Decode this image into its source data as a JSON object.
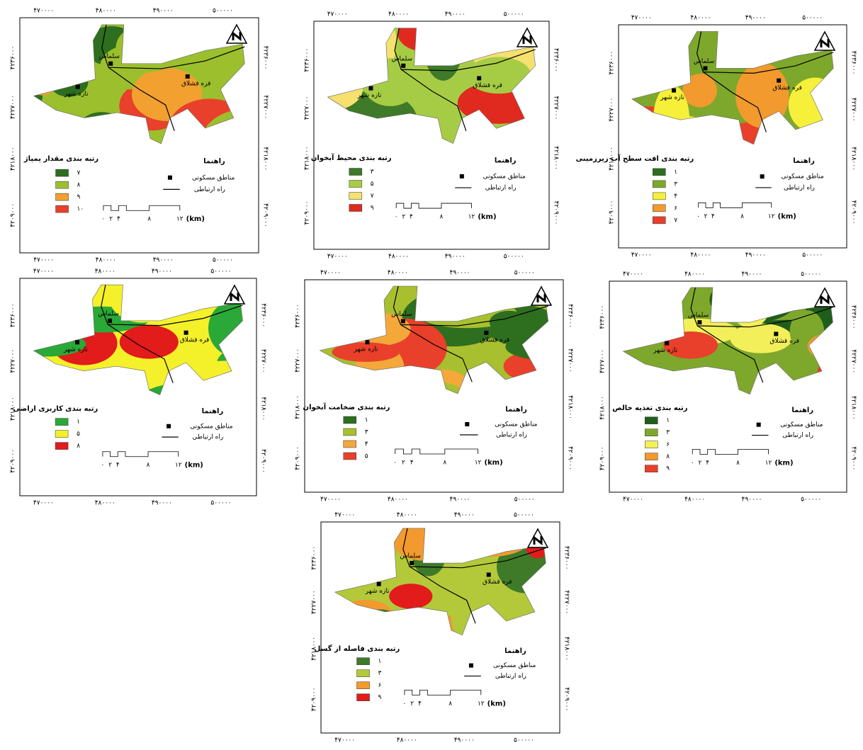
{
  "axes": {
    "x_ticks": [
      "۴۷۰۰۰۰",
      "۴۸۰۰۰۰",
      "۴۹۰۰۰۰",
      "۵۰۰۰۰۰"
    ],
    "y_ticks": [
      "۴۲۳۶۰۰۰",
      "۴۲۲۷۰۰۰",
      "۴۲۱۸۰۰۰",
      "۴۲۰۹۰۰۰"
    ]
  },
  "towns": [
    "سلماس",
    "قره قشلاق",
    "تازه شهر"
  ],
  "legend": {
    "title": "راهنما",
    "items": [
      "مناطق مسکونی",
      "راه ارتباطی"
    ]
  },
  "scale_bar": [
    "۰",
    "۲",
    "۴",
    "۸",
    "۱۲",
    "(km)"
  ],
  "maps": [
    {
      "title": "رتبه بندی مقدار پمپاژ",
      "classes": [
        {
          "label": "۷",
          "color": "#2e6e1f"
        },
        {
          "label": "۸",
          "color": "#9cbf2e"
        },
        {
          "label": "۹",
          "color": "#f2a030"
        },
        {
          "label": "۱۰",
          "color": "#e8402a"
        }
      ]
    },
    {
      "title": "رتبه بندی محیط آبخوان",
      "classes": [
        {
          "label": "۳",
          "color": "#3f7a28"
        },
        {
          "label": "۵",
          "color": "#a6cc45"
        },
        {
          "label": "۷",
          "color": "#f5e070"
        },
        {
          "label": "۹",
          "color": "#e02a20"
        }
      ]
    },
    {
      "title": "رتبه بندی افت سطح آب زیرزمینی",
      "classes": [
        {
          "label": "۱",
          "color": "#2e6e1f"
        },
        {
          "label": "۳",
          "color": "#7ea82c"
        },
        {
          "label": "۴",
          "color": "#f6f03a"
        },
        {
          "label": "۶",
          "color": "#f29a2e"
        },
        {
          "label": "۷",
          "color": "#e8402a"
        }
      ]
    },
    {
      "title": "رتبه بندی کاربری اراضی",
      "classes": [
        {
          "label": "۱",
          "color": "#2aa838"
        },
        {
          "label": "۵",
          "color": "#f4f02a"
        },
        {
          "label": "۸",
          "color": "#e21b1b"
        }
      ]
    },
    {
      "title": "رتبه بندی ضخامت آبخوان",
      "classes": [
        {
          "label": "۱",
          "color": "#2e6e1f"
        },
        {
          "label": "۳",
          "color": "#a8bf30"
        },
        {
          "label": "۴",
          "color": "#f5a83a"
        },
        {
          "label": "۵",
          "color": "#e8402a"
        }
      ]
    },
    {
      "title": "رتبه بندی تغذیه خالص",
      "classes": [
        {
          "label": "۱",
          "color": "#1f5e1a"
        },
        {
          "label": "۳",
          "color": "#7ea82c"
        },
        {
          "label": "۶",
          "color": "#f3ef5a"
        },
        {
          "label": "۸",
          "color": "#f29a2e"
        },
        {
          "label": "۹",
          "color": "#e8402a"
        }
      ]
    },
    {
      "title": "رتبه بندی فاصله از گسل",
      "classes": [
        {
          "label": "۱",
          "color": "#3f7a28"
        },
        {
          "label": "۳",
          "color": "#b3c93a"
        },
        {
          "label": "۶",
          "color": "#f29a2e"
        },
        {
          "label": "۹",
          "color": "#e21b1b"
        }
      ]
    }
  ]
}
